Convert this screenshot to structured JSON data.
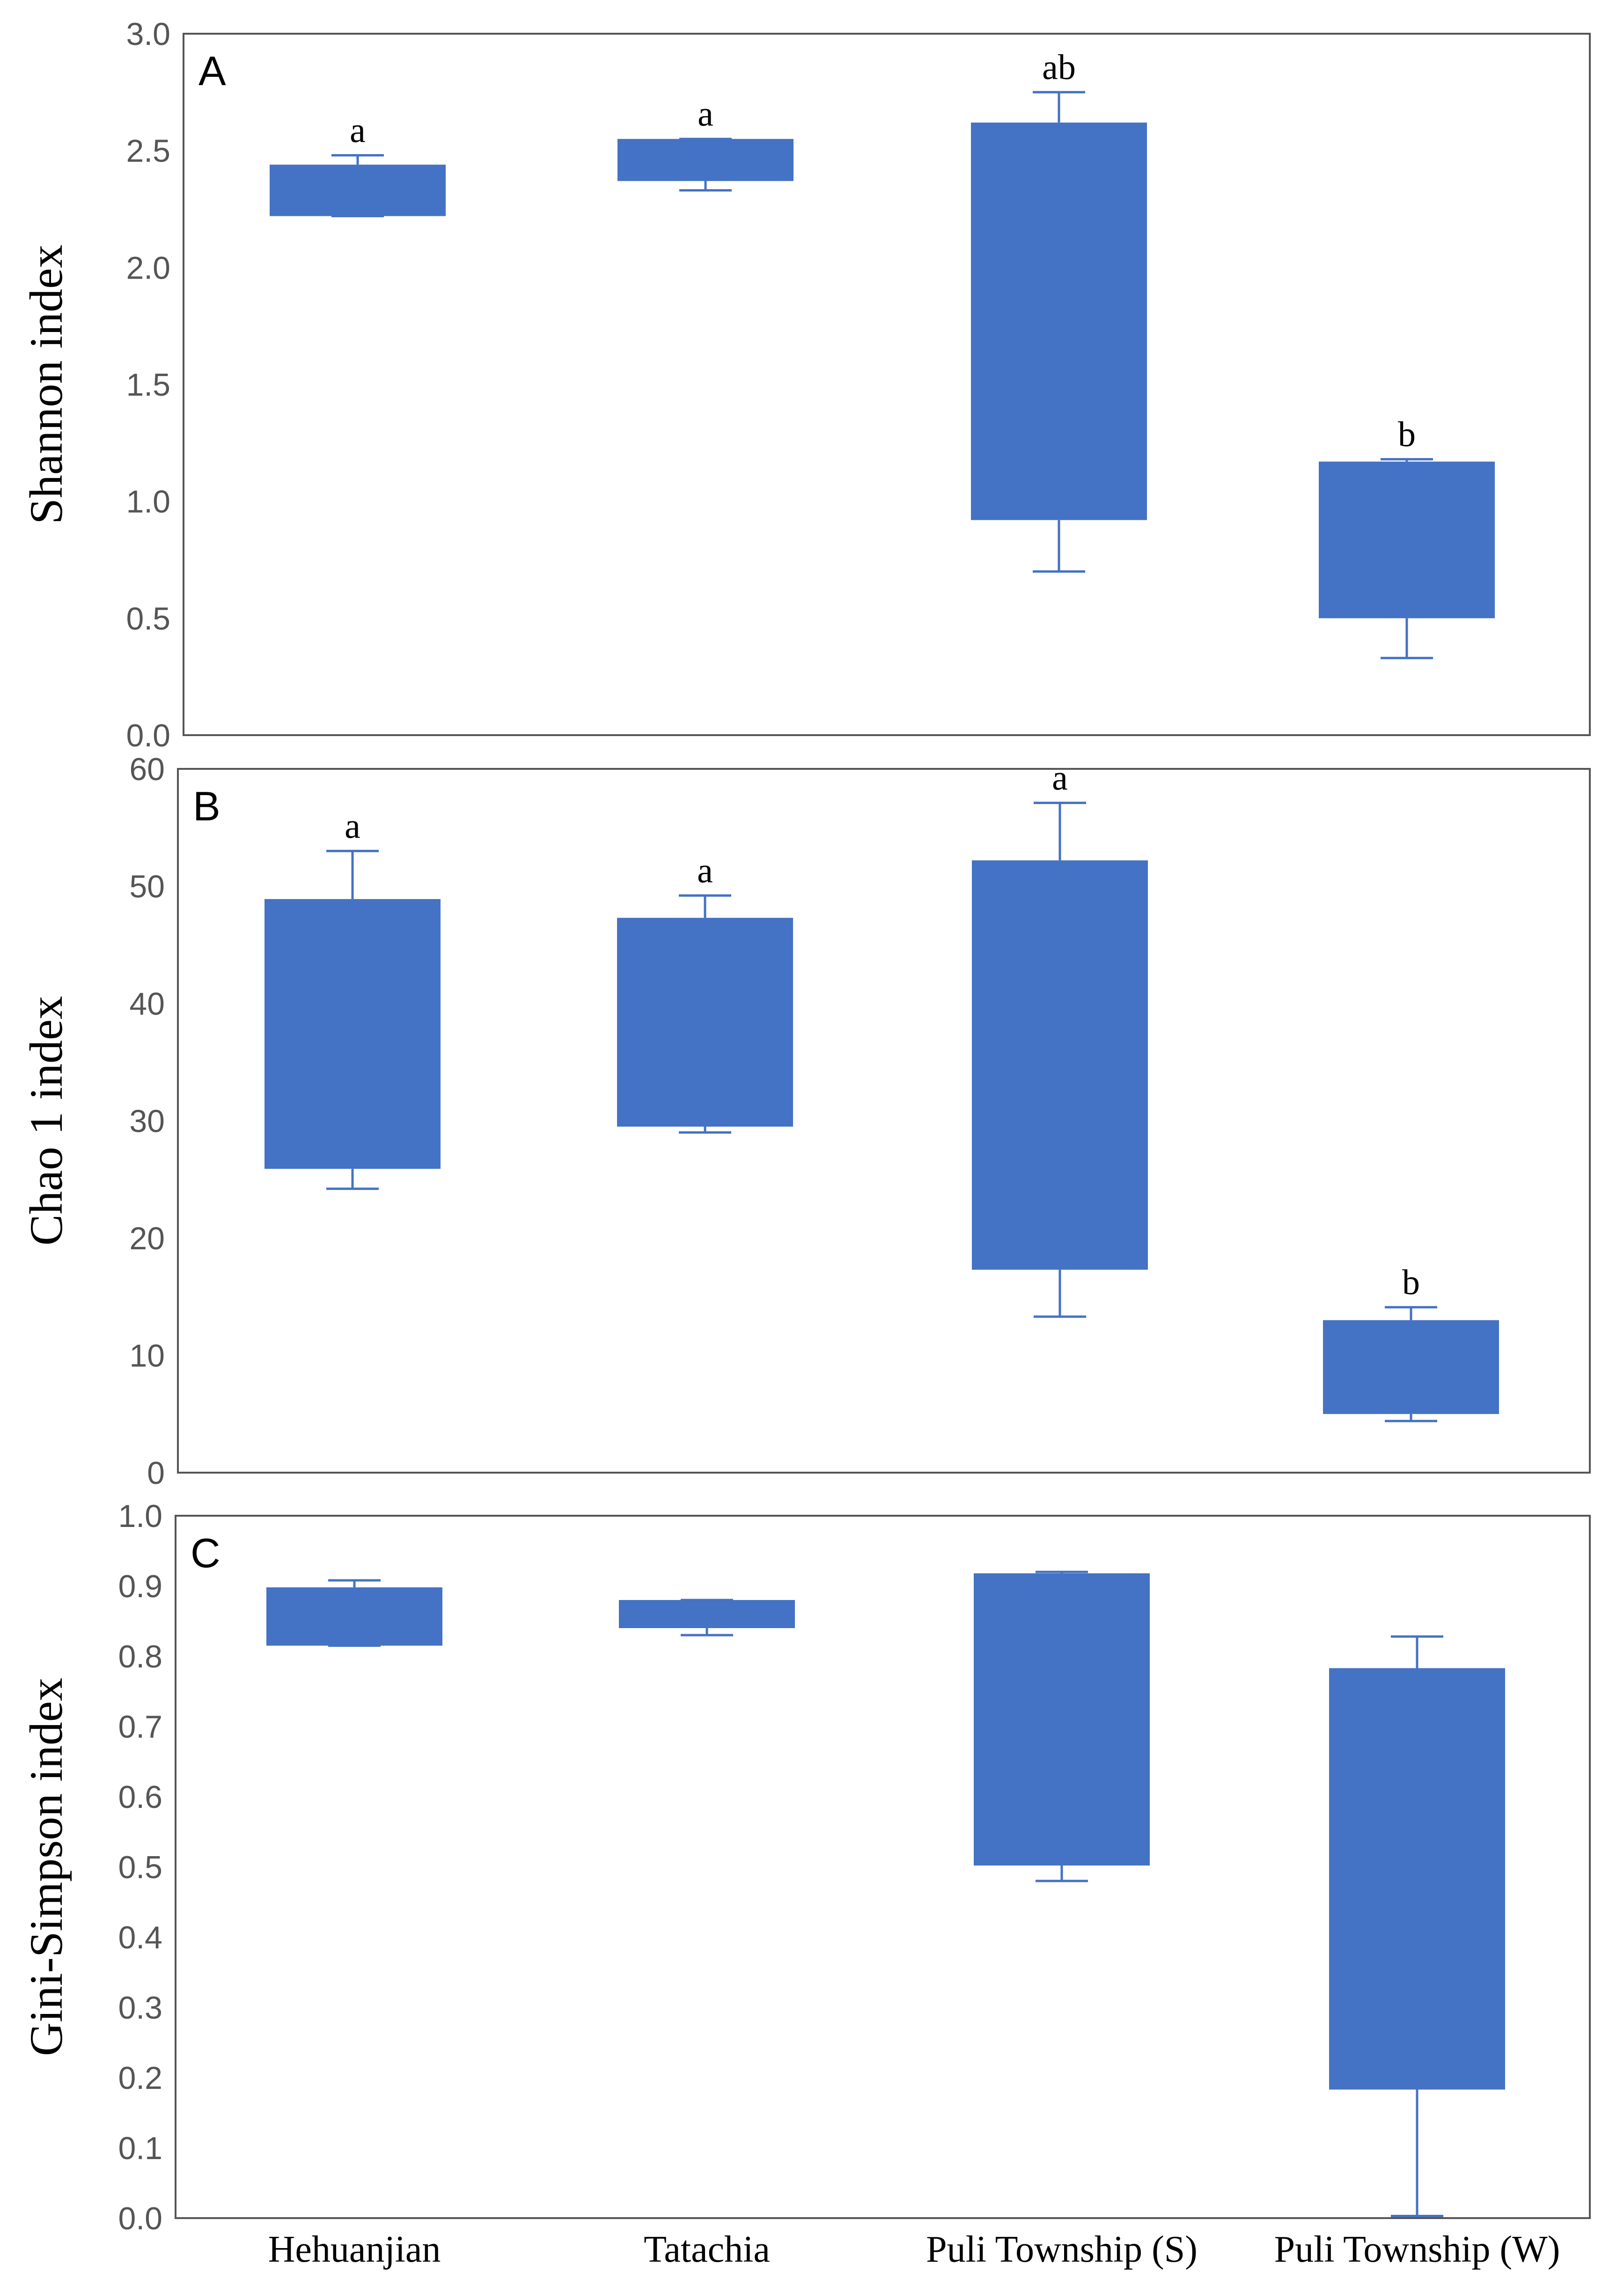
{
  "colors": {
    "box": "#4472C4",
    "frame": "#555555",
    "tick_text": "#555555",
    "text": "#000000"
  },
  "chart_data": [
    {
      "type": "box",
      "panel": "A",
      "ylabel": "Shannon index",
      "ylim": [
        0,
        3.0
      ],
      "yticks": [
        "0.0",
        "0.5",
        "1.0",
        "1.5",
        "2.0",
        "2.5",
        "3.0"
      ],
      "categories": [
        "Hehuanjian",
        "Tatachia",
        "Puli Township (S)",
        "Puli Township (W)"
      ],
      "boxes": [
        {
          "category": "Hehuanjian",
          "min": 2.22,
          "q1": 2.22,
          "q3": 2.44,
          "max": 2.48,
          "letter": "a"
        },
        {
          "category": "Tatachia",
          "min": 2.33,
          "q1": 2.37,
          "q3": 2.55,
          "max": 2.55,
          "letter": "a"
        },
        {
          "category": "Puli Township (S)",
          "min": 0.7,
          "q1": 0.92,
          "q3": 2.62,
          "max": 2.75,
          "letter": "ab"
        },
        {
          "category": "Puli Township (W)",
          "min": 0.33,
          "q1": 0.5,
          "q3": 1.17,
          "max": 1.18,
          "letter": "b"
        }
      ]
    },
    {
      "type": "box",
      "panel": "B",
      "ylabel": "Chao 1  index",
      "ylim": [
        0,
        60
      ],
      "yticks": [
        "0",
        "10",
        "20",
        "30",
        "40",
        "50",
        "60"
      ],
      "categories": [
        "Hehuanjian",
        "Tatachia",
        "Puli Township (S)",
        "Puli Township (W)"
      ],
      "boxes": [
        {
          "category": "Hehuanjian",
          "min": 24.2,
          "q1": 25.9,
          "q3": 48.9,
          "max": 53.0,
          "letter": "a"
        },
        {
          "category": "Tatachia",
          "min": 29.0,
          "q1": 29.5,
          "q3": 47.3,
          "max": 49.2,
          "letter": "a"
        },
        {
          "category": "Puli Township (S)",
          "min": 13.3,
          "q1": 17.3,
          "q3": 52.2,
          "max": 57.1,
          "letter": "a"
        },
        {
          "category": "Puli Township (W)",
          "min": 4.4,
          "q1": 5.0,
          "q3": 13.0,
          "max": 14.1,
          "letter": "b"
        }
      ]
    },
    {
      "type": "box",
      "panel": "C",
      "ylabel": "Gini-Simpson index",
      "ylim": [
        0,
        1.0
      ],
      "yticks": [
        "0.0",
        "0.1",
        "0.2",
        "0.3",
        "0.4",
        "0.5",
        "0.6",
        "0.7",
        "0.8",
        "0.9",
        "1.0"
      ],
      "categories": [
        "Hehuanjian",
        "Tatachia",
        "Puli Township (S)",
        "Puli Township (W)"
      ],
      "xtick_labels": [
        "Hehuanjian",
        "Tatachia",
        "Puli Township (S)",
        "Puli Township (W)"
      ],
      "boxes": [
        {
          "category": "Hehuanjian",
          "min": 0.815,
          "q1": 0.815,
          "q3": 0.898,
          "max": 0.908,
          "letter": ""
        },
        {
          "category": "Tatachia",
          "min": 0.83,
          "q1": 0.84,
          "q3": 0.88,
          "max": 0.88,
          "letter": ""
        },
        {
          "category": "Puli Township (S)",
          "min": 0.48,
          "q1": 0.502,
          "q3": 0.918,
          "max": 0.92,
          "letter": ""
        },
        {
          "category": "Puli Township (W)",
          "min": 0.003,
          "q1": 0.183,
          "q3": 0.783,
          "max": 0.828,
          "letter": ""
        }
      ]
    }
  ]
}
